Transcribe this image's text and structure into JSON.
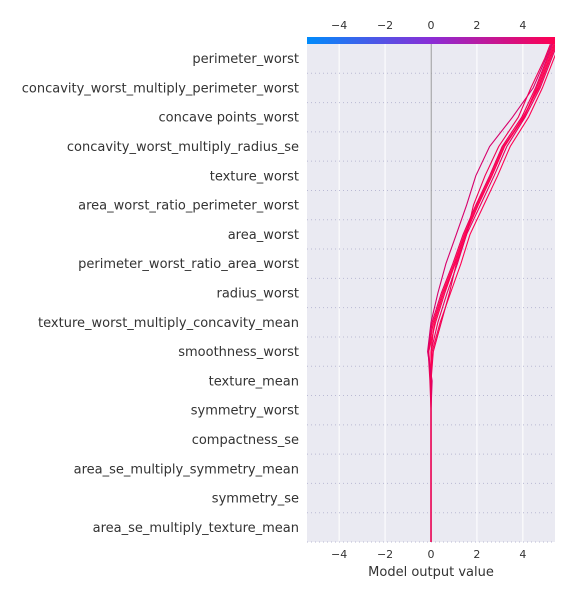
{
  "chart_data": {
    "type": "line",
    "subtype": "shap-decision-plot",
    "title": "",
    "xlabel": "Model output value",
    "ylabel": "",
    "xlim": [
      -5.4,
      5.4
    ],
    "xticks": [
      -4,
      -2,
      0,
      2,
      4
    ],
    "tick_labels": [
      "−4",
      "−2",
      "0",
      "2",
      "4"
    ],
    "base_value": 0,
    "features": [
      "perimeter_worst",
      "concavity_worst_multiply_perimeter_worst",
      "concave points_worst",
      "concavity_worst_multiply_radius_se",
      "texture_worst",
      "area_worst_ratio_perimeter_worst",
      "area_worst",
      "perimeter_worst_ratio_area_worst",
      "radius_worst",
      "texture_worst_multiply_concavity_mean",
      "smoothness_worst",
      "texture_mean",
      "symmetry_worst",
      "compactness_se",
      "area_se_multiply_symmetry_mean",
      "symmetry_se",
      "area_se_multiply_texture_mean"
    ],
    "colorbar": {
      "min": -5.4,
      "max": 5.4,
      "low_color": "#008bfb",
      "high_color": "#ff0051"
    },
    "grid": true,
    "background": "#eaeaf2",
    "series": [
      {
        "x": [
          0,
          0,
          0,
          0,
          0,
          0,
          0.05,
          0.4,
          0.85,
          1.3,
          1.7,
          2.3,
          2.9,
          3.45,
          4.25,
          4.85,
          5.35
        ]
      },
      {
        "x": [
          0,
          0,
          0,
          0,
          0,
          -0.02,
          -0.1,
          0.2,
          0.6,
          1.05,
          1.5,
          2.05,
          2.65,
          3.2,
          4.05,
          4.65,
          5.15
        ]
      },
      {
        "x": [
          0,
          0,
          0,
          0,
          0,
          0,
          0,
          0.3,
          0.7,
          1.15,
          1.55,
          2.15,
          2.75,
          3.3,
          4.1,
          4.75,
          5.25
        ]
      },
      {
        "x": [
          0,
          0,
          0,
          0,
          0,
          0.02,
          -0.1,
          0.1,
          0.5,
          1.0,
          1.45,
          2.0,
          2.6,
          3.15,
          4.05,
          4.6,
          5.1
        ]
      },
      {
        "x": [
          0,
          0,
          0,
          0,
          0,
          -0.05,
          -0.12,
          0.05,
          0.45,
          0.95,
          1.4,
          1.95,
          2.55,
          3.1,
          3.95,
          4.55,
          5.05
        ]
      },
      {
        "x": [
          0,
          0,
          0,
          0,
          0,
          0,
          0,
          0.15,
          0.55,
          1.05,
          1.5,
          2.05,
          2.65,
          3.2,
          4.0,
          4.7,
          5.2
        ]
      },
      {
        "x": [
          0,
          0,
          0,
          0,
          0,
          0.05,
          -0.15,
          0.0,
          0.3,
          0.65,
          1.1,
          1.55,
          1.95,
          2.55,
          3.55,
          4.45,
          5.0
        ]
      },
      {
        "x": [
          0,
          0,
          0,
          0,
          0,
          0,
          0.1,
          0.45,
          0.8,
          1.1,
          1.55,
          1.85,
          2.35,
          2.95,
          3.8,
          4.35,
          4.95
        ]
      }
    ],
    "series_colors": [
      "#ff0051",
      "#f8004f",
      "#e8005b",
      "#ff0051",
      "#ea0057",
      "#ff0051",
      "#d7006b",
      "#f00055"
    ]
  }
}
